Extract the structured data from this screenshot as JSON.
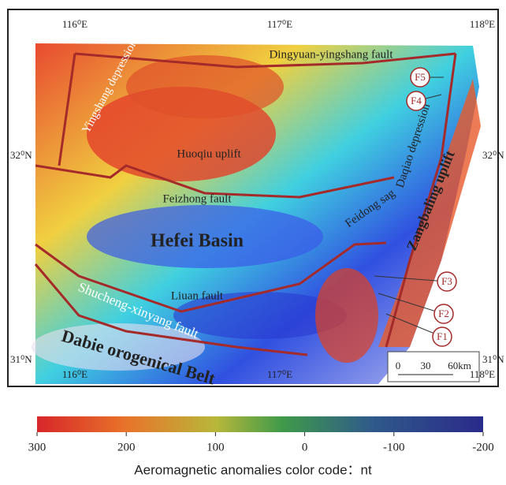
{
  "map": {
    "graticule": {
      "lon": [
        "116⁰E",
        "117⁰E",
        "118⁰E"
      ],
      "lat": [
        "32⁰N",
        "31⁰N"
      ]
    },
    "labels": {
      "dingyuan": "Dingyuan-yingshang fault",
      "yingshang": "Yingshang depression",
      "huoqiu": "Huoqiu uplift",
      "feizhong": "Feizhong fault",
      "hefei": "Hefei Basin",
      "daqiao": "Daqiao depression",
      "feidong": "Feidong sag",
      "zangbaling": "Zangbaling uplift",
      "liuan": "Liuan fault",
      "shucheng": "Shucheng-xinyang fault",
      "dabie": "Dabie orogenical Belt"
    },
    "faults": [
      "F1",
      "F2",
      "F3",
      "F4",
      "F5"
    ],
    "scale": [
      "0",
      "30",
      "60km"
    ]
  },
  "colorbar": {
    "title": "Aeromagnetic anomalies color code：nt",
    "lim": [
      300,
      -200
    ],
    "ticks": [
      300,
      200,
      100,
      0,
      -100,
      -200
    ]
  }
}
